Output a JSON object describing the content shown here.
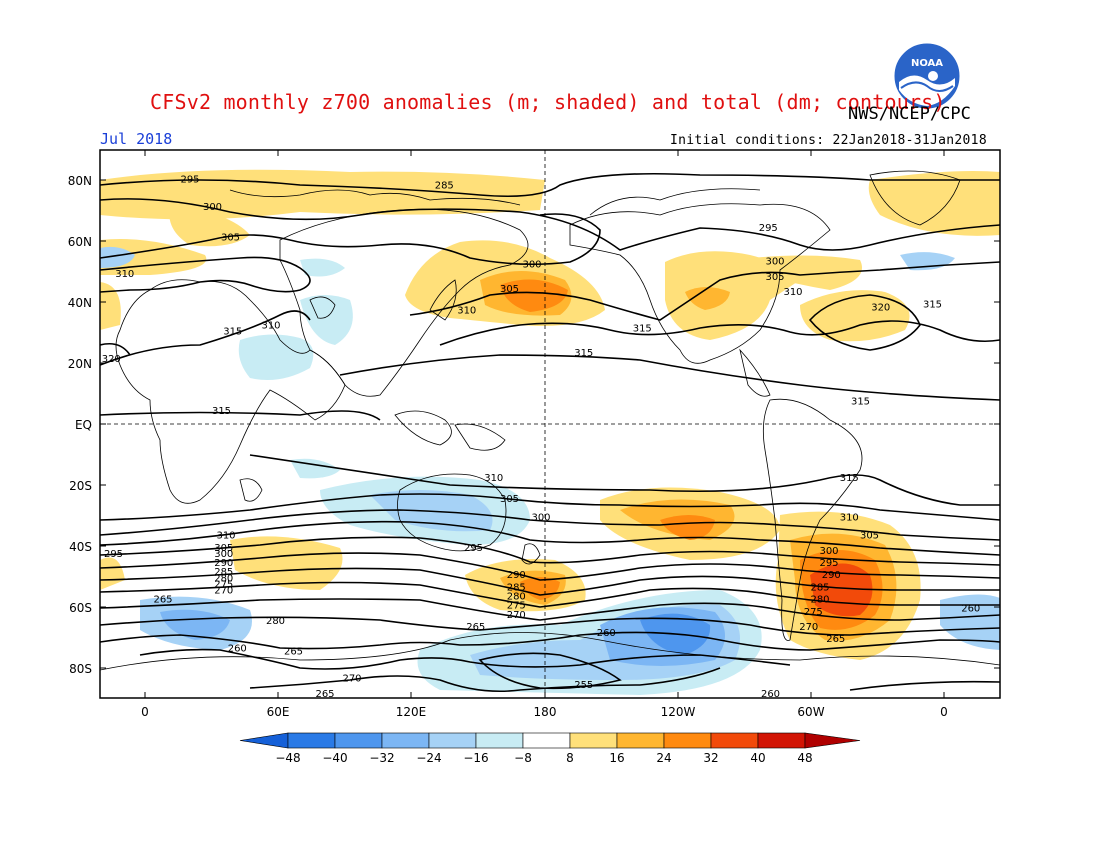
{
  "header": {
    "title": "CFSv2 monthly z700 anomalies (m; shaded) and total (dm; contours)",
    "agency": "NWS/NCEP/CPC",
    "month": "Jul 2018",
    "initial_conditions": "Initial conditions: 22Jan2018-31Jan2018",
    "logo_text": "NOAA"
  },
  "map": {
    "lat_labels": [
      "80N",
      "60N",
      "40N",
      "20N",
      "EQ",
      "20S",
      "40S",
      "60S",
      "80S"
    ],
    "lat_values": [
      80,
      60,
      40,
      20,
      0,
      -20,
      -40,
      -60,
      -80
    ],
    "lon_labels": [
      "0",
      "60E",
      "120E",
      "180",
      "120W",
      "60W",
      "0"
    ],
    "lon_values": [
      0,
      60,
      120,
      180,
      240,
      300,
      360
    ],
    "lon_range": [
      -20,
      380
    ],
    "lat_range": [
      -90,
      90
    ],
    "contour_labels": [
      {
        "v": "295",
        "lon": 20,
        "lat": 80
      },
      {
        "v": "285",
        "lon": 133,
        "lat": 78
      },
      {
        "v": "300",
        "lon": 30,
        "lat": 71
      },
      {
        "v": "305",
        "lon": 38,
        "lat": 61
      },
      {
        "v": "310",
        "lon": -9,
        "lat": 49
      },
      {
        "v": "300",
        "lon": 172,
        "lat": 52
      },
      {
        "v": "305",
        "lon": 162,
        "lat": 44
      },
      {
        "v": "310",
        "lon": 143,
        "lat": 37
      },
      {
        "v": "295",
        "lon": 277,
        "lat": 64
      },
      {
        "v": "300",
        "lon": 280,
        "lat": 53
      },
      {
        "v": "305",
        "lon": 280,
        "lat": 48
      },
      {
        "v": "310",
        "lon": 288,
        "lat": 43
      },
      {
        "v": "320",
        "lon": 327,
        "lat": 38
      },
      {
        "v": "315",
        "lon": 350,
        "lat": 39
      },
      {
        "v": "310",
        "lon": 56,
        "lat": 32
      },
      {
        "v": "315",
        "lon": 39,
        "lat": 30
      },
      {
        "v": "315",
        "lon": 221,
        "lat": 31
      },
      {
        "v": "320",
        "lon": -15,
        "lat": 21
      },
      {
        "v": "315",
        "lon": 195,
        "lat": 23
      },
      {
        "v": "315",
        "lon": 318,
        "lat": 7
      },
      {
        "v": "315",
        "lon": 34,
        "lat": 4
      },
      {
        "v": "315",
        "lon": 313,
        "lat": -18
      },
      {
        "v": "310",
        "lon": 155,
        "lat": -18
      },
      {
        "v": "305",
        "lon": 162,
        "lat": -25
      },
      {
        "v": "300",
        "lon": 176,
        "lat": -31
      },
      {
        "v": "310",
        "lon": 313,
        "lat": -31
      },
      {
        "v": "310",
        "lon": 36,
        "lat": -37
      },
      {
        "v": "305",
        "lon": 35,
        "lat": -41
      },
      {
        "v": "300",
        "lon": 35,
        "lat": -43
      },
      {
        "v": "295",
        "lon": -14,
        "lat": -43
      },
      {
        "v": "295",
        "lon": 146,
        "lat": -41
      },
      {
        "v": "305",
        "lon": 322,
        "lat": -37
      },
      {
        "v": "300",
        "lon": 304,
        "lat": -42
      },
      {
        "v": "295",
        "lon": 304,
        "lat": -46
      },
      {
        "v": "290",
        "lon": 305,
        "lat": -50
      },
      {
        "v": "285",
        "lon": 300,
        "lat": -54
      },
      {
        "v": "280",
        "lon": 300,
        "lat": -58
      },
      {
        "v": "275",
        "lon": 297,
        "lat": -62
      },
      {
        "v": "270",
        "lon": 295,
        "lat": -67
      },
      {
        "v": "265",
        "lon": 307,
        "lat": -71
      },
      {
        "v": "290",
        "lon": 35,
        "lat": -46
      },
      {
        "v": "285",
        "lon": 35,
        "lat": -49
      },
      {
        "v": "280",
        "lon": 35,
        "lat": -51
      },
      {
        "v": "275",
        "lon": 35,
        "lat": -53
      },
      {
        "v": "270",
        "lon": 35,
        "lat": -55
      },
      {
        "v": "290",
        "lon": 165,
        "lat": -50
      },
      {
        "v": "285",
        "lon": 165,
        "lat": -54
      },
      {
        "v": "280",
        "lon": 165,
        "lat": -57
      },
      {
        "v": "275",
        "lon": 165,
        "lat": -60
      },
      {
        "v": "270",
        "lon": 165,
        "lat": -63
      },
      {
        "v": "265",
        "lon": 8,
        "lat": -58
      },
      {
        "v": "280",
        "lon": 58,
        "lat": -65
      },
      {
        "v": "265",
        "lon": 147,
        "lat": -67
      },
      {
        "v": "260",
        "lon": 205,
        "lat": -69
      },
      {
        "v": "260",
        "lon": 367,
        "lat": -61
      },
      {
        "v": "260",
        "lon": 41,
        "lat": -74
      },
      {
        "v": "265",
        "lon": 66,
        "lat": -75
      },
      {
        "v": "270",
        "lon": 92,
        "lat": -84
      },
      {
        "v": "265",
        "lon": 80,
        "lat": -89
      },
      {
        "v": "255",
        "lon": 195,
        "lat": -86
      },
      {
        "v": "260",
        "lon": 278,
        "lat": -89
      }
    ]
  },
  "colorbar": {
    "labels": [
      "-48",
      "-40",
      "-32",
      "-24",
      "-16",
      "-8",
      "8",
      "16",
      "24",
      "32",
      "40",
      "48"
    ],
    "colors": [
      "#1560d8",
      "#2a7ae6",
      "#4e96ee",
      "#7cb6f4",
      "#a6d2f6",
      "#c8ecf4",
      "#ffffff",
      "#ffe07a",
      "#ffb630",
      "#ff8a10",
      "#f24a0a",
      "#d21404",
      "#b00000"
    ]
  }
}
